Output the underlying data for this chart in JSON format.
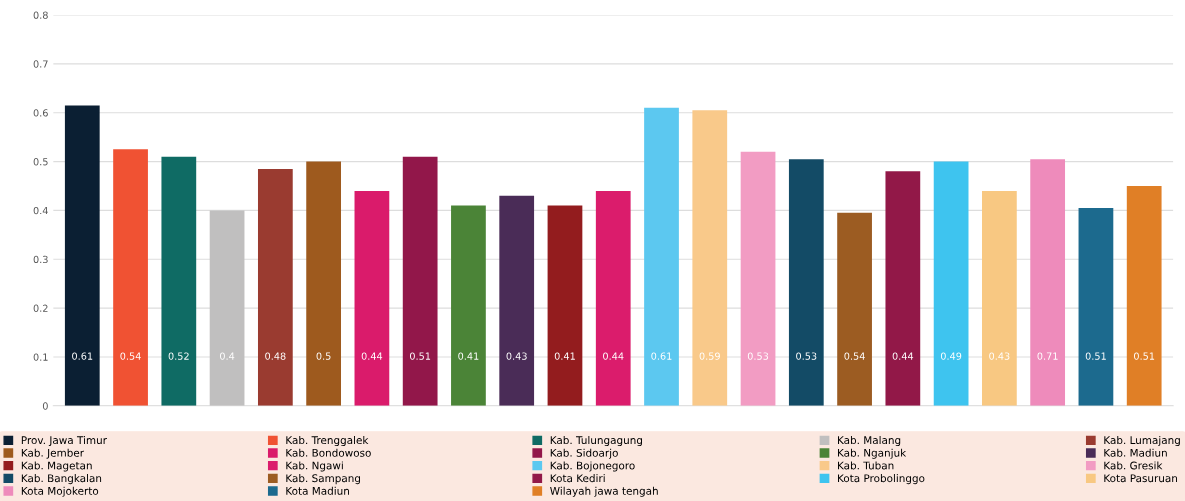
{
  "chart_data": {
    "type": "bar",
    "categories": [
      null,
      null,
      null,
      null,
      null,
      null,
      null,
      null,
      null,
      null,
      null,
      null,
      null,
      null,
      null,
      null,
      null,
      null,
      null,
      null,
      null,
      null,
      null
    ],
    "series": [
      {
        "name": "Prov. Jawa Timur",
        "color": "#0b1f33",
        "values": [
          0.615,
          null,
          null,
          null,
          null,
          null,
          null,
          null,
          null,
          null,
          null,
          null,
          null,
          null,
          null,
          null,
          null,
          null,
          null,
          null,
          null,
          null,
          null
        ]
      },
      {
        "name": "Kab. Trenggalek",
        "color": "#f05233",
        "values": [
          null,
          0.525,
          null,
          null,
          null,
          null,
          null,
          null,
          null,
          null,
          null,
          null,
          null,
          null,
          null,
          null,
          null,
          null,
          null,
          null,
          null,
          null,
          null
        ]
      },
      {
        "name": "Kab. Tulungagung",
        "color": "#0f6b64",
        "values": [
          null,
          null,
          0.51,
          null,
          null,
          null,
          null,
          null,
          null,
          null,
          null,
          null,
          null,
          null,
          null,
          null,
          null,
          null,
          null,
          null,
          null,
          null,
          null
        ]
      },
      {
        "name": "Kab. Malang",
        "color": "#c0bfbf",
        "values": [
          null,
          null,
          null,
          0.4,
          null,
          null,
          null,
          null,
          null,
          null,
          null,
          null,
          null,
          null,
          null,
          null,
          null,
          null,
          null,
          null,
          null,
          null,
          null
        ]
      },
      {
        "name": "Kab. Lumajang",
        "color": "#9a3b30",
        "values": [
          null,
          null,
          null,
          null,
          0.485,
          null,
          null,
          null,
          null,
          null,
          null,
          null,
          null,
          null,
          null,
          null,
          null,
          null,
          null,
          null,
          null,
          null,
          null
        ]
      },
      {
        "name": "Kab. Jember",
        "color": "#9e5a1e",
        "values": [
          null,
          null,
          null,
          null,
          null,
          0.5,
          null,
          null,
          null,
          null,
          null,
          null,
          null,
          null,
          null,
          null,
          null,
          null,
          null,
          null,
          null,
          null,
          null
        ]
      },
      {
        "name": "Kab. Bondowoso",
        "color": "#da1b6b",
        "values": [
          null,
          null,
          null,
          null,
          null,
          null,
          0.44,
          null,
          null,
          null,
          null,
          null,
          null,
          null,
          null,
          null,
          null,
          null,
          null,
          null,
          null,
          null,
          null
        ]
      },
      {
        "name": "Kab. Sidoarjo",
        "color": "#92174a",
        "values": [
          null,
          null,
          null,
          null,
          null,
          null,
          null,
          0.51,
          null,
          null,
          null,
          null,
          null,
          null,
          null,
          null,
          null,
          null,
          null,
          null,
          null,
          null,
          null
        ]
      },
      {
        "name": "Kab. Nganjuk",
        "color": "#4b8437",
        "values": [
          null,
          null,
          null,
          null,
          null,
          null,
          null,
          null,
          0.41,
          null,
          null,
          null,
          null,
          null,
          null,
          null,
          null,
          null,
          null,
          null,
          null,
          null,
          null
        ]
      },
      {
        "name": "Kab. Madiun",
        "color": "#4a2c57",
        "values": [
          null,
          null,
          null,
          null,
          null,
          null,
          null,
          null,
          null,
          0.43,
          null,
          null,
          null,
          null,
          null,
          null,
          null,
          null,
          null,
          null,
          null,
          null,
          null
        ]
      },
      {
        "name": "Kab. Magetan",
        "color": "#931c1e",
        "values": [
          null,
          null,
          null,
          null,
          null,
          null,
          null,
          null,
          null,
          null,
          0.41,
          null,
          null,
          null,
          null,
          null,
          null,
          null,
          null,
          null,
          null,
          null,
          null
        ]
      },
      {
        "name": "Kab. Ngawi",
        "color": "#db1c6c",
        "values": [
          null,
          null,
          null,
          null,
          null,
          null,
          null,
          null,
          null,
          null,
          null,
          0.44,
          null,
          null,
          null,
          null,
          null,
          null,
          null,
          null,
          null,
          null,
          null
        ]
      },
      {
        "name": "Kab. Bojonegoro",
        "color": "#5cc8f0",
        "values": [
          null,
          null,
          null,
          null,
          null,
          null,
          null,
          null,
          null,
          null,
          null,
          null,
          0.61,
          null,
          null,
          null,
          null,
          null,
          null,
          null,
          null,
          null,
          null
        ]
      },
      {
        "name": "Kab. Tuban",
        "color": "#f9c98a",
        "values": [
          null,
          null,
          null,
          null,
          null,
          null,
          null,
          null,
          null,
          null,
          null,
          null,
          null,
          0.605,
          null,
          null,
          null,
          null,
          null,
          null,
          null,
          null,
          null
        ]
      },
      {
        "name": "Kab. Gresik",
        "color": "#f29cc3",
        "values": [
          null,
          null,
          null,
          null,
          null,
          null,
          null,
          null,
          null,
          null,
          null,
          null,
          null,
          null,
          0.52,
          null,
          null,
          null,
          null,
          null,
          null,
          null,
          null
        ]
      },
      {
        "name": "Kab. Bangkalan",
        "color": "#134b66",
        "values": [
          null,
          null,
          null,
          null,
          null,
          null,
          null,
          null,
          null,
          null,
          null,
          null,
          null,
          null,
          null,
          0.505,
          null,
          null,
          null,
          null,
          null,
          null,
          null
        ]
      },
      {
        "name": "Kab. Sampang",
        "color": "#9c5c22",
        "values": [
          null,
          null,
          null,
          null,
          null,
          null,
          null,
          null,
          null,
          null,
          null,
          null,
          null,
          null,
          null,
          null,
          0.395,
          null,
          null,
          null,
          null,
          null,
          null
        ]
      },
      {
        "name": "Kota Kediri",
        "color": "#921848",
        "values": [
          null,
          null,
          null,
          null,
          null,
          null,
          null,
          null,
          null,
          null,
          null,
          null,
          null,
          null,
          null,
          null,
          null,
          0.48,
          null,
          null,
          null,
          null,
          null
        ]
      },
      {
        "name": "Kota Probolinggo",
        "color": "#3ec4ef",
        "values": [
          null,
          null,
          null,
          null,
          null,
          null,
          null,
          null,
          null,
          null,
          null,
          null,
          null,
          null,
          null,
          null,
          null,
          null,
          0.5,
          null,
          null,
          null,
          null
        ]
      },
      {
        "name": "Kota Pasuruan",
        "color": "#f8c882",
        "values": [
          null,
          null,
          null,
          null,
          null,
          null,
          null,
          null,
          null,
          null,
          null,
          null,
          null,
          null,
          null,
          null,
          null,
          null,
          null,
          0.44,
          null,
          null,
          null
        ]
      },
      {
        "name": "Kota Mojokerto",
        "color": "#ee8bbb",
        "values": [
          null,
          null,
          null,
          null,
          null,
          null,
          null,
          null,
          null,
          null,
          null,
          null,
          null,
          null,
          null,
          null,
          null,
          null,
          null,
          null,
          0.505,
          null,
          null
        ]
      },
      {
        "name": "Kota Madiun",
        "color": "#1c6a8e",
        "values": [
          null,
          null,
          null,
          null,
          null,
          null,
          null,
          null,
          null,
          null,
          null,
          null,
          null,
          null,
          null,
          null,
          null,
          null,
          null,
          null,
          null,
          0.405,
          null
        ]
      },
      {
        "name": "Wilayah jawa tengah",
        "color": "#e07f26",
        "values": [
          null,
          null,
          null,
          null,
          null,
          null,
          null,
          null,
          null,
          null,
          null,
          null,
          null,
          null,
          null,
          null,
          null,
          null,
          null,
          null,
          null,
          null,
          0.45
        ]
      }
    ],
    "value_labels": [
      "0.61",
      "0.54",
      "0.52",
      "0.4",
      "0.48",
      "0.5",
      "0.44",
      "0.51",
      "0.41",
      "0.43",
      "0.41",
      "0.44",
      "0.61",
      "0.59",
      "0.53",
      "0.53",
      "0.54",
      "0.44",
      "0.49",
      "0.43",
      "0.71",
      "0.51",
      "0.51"
    ],
    "ylim": [
      0,
      0.8
    ],
    "yticks": [
      0,
      0.1,
      0.2,
      0.3,
      0.4,
      0.5,
      0.6,
      0.7,
      0.8
    ],
    "grid": "y",
    "legend": "bottom"
  }
}
